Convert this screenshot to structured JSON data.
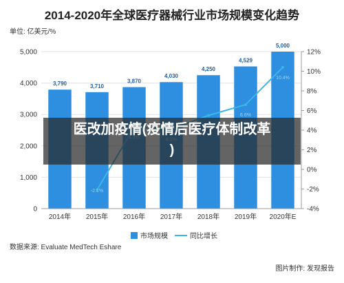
{
  "chart_data": {
    "type": "bar",
    "title": "2014-2020年全球医疗器械行业市场规模变化趋势",
    "unit_label": "单位: 亿美元/%",
    "categories": [
      "2014年",
      "2015年",
      "2016年",
      "2017年",
      "2018年",
      "2019年",
      "2020年E"
    ],
    "series": [
      {
        "name": "市场规模",
        "type": "bar",
        "axis": "left",
        "color": "#2e8fe0",
        "values": [
          3790,
          3710,
          3870,
          4030,
          4250,
          4529,
          5000
        ],
        "labels": [
          "3,790",
          "3,710",
          "3,870",
          "4,030",
          "4,250",
          "4,529",
          "5,000"
        ]
      },
      {
        "name": "同比增长",
        "type": "line",
        "axis": "right",
        "color": "#3ab7e6",
        "values": [
          null,
          -2.1,
          4.3,
          4.1,
          5.5,
          6.6,
          10.4
        ],
        "labels": [
          "",
          "-2.1%",
          "4.3%",
          "4.1%",
          "5.5%",
          "6.6%",
          "10.4%"
        ]
      }
    ],
    "y_left": {
      "min": 0,
      "max": 5000,
      "ticks": [
        "0",
        "1,000",
        "2,000",
        "3,000",
        "4,000",
        "5,000"
      ]
    },
    "y_right": {
      "min": -4,
      "max": 12,
      "ticks": [
        "-4%",
        "-2%",
        "0%",
        "2%",
        "4%",
        "6%",
        "8%",
        "10%",
        "12%"
      ]
    },
    "grid": true,
    "legend_position": "bottom"
  },
  "source": "数据来源: Evaluate MedTech Eshare",
  "credit": "图片制作: 发现报告",
  "overlay": {
    "line1": "医改加疫情(疫情后医疗体制改革",
    "line2": ")"
  }
}
